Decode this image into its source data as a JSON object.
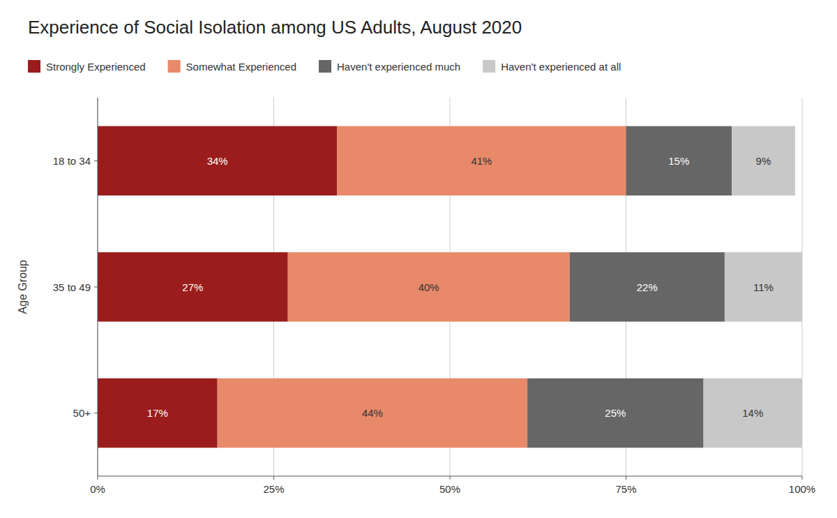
{
  "chart_data": {
    "type": "bar",
    "orientation": "horizontal",
    "stacked": true,
    "title": "Experience of Social Isolation among US Adults, August 2020",
    "ylabel": "Age Group",
    "categories": [
      "18 to 34",
      "35 to 49",
      "50+"
    ],
    "series": [
      {
        "name": "Strongly Experienced",
        "color": "#9B1C1C",
        "values": [
          34,
          27,
          17
        ],
        "value_labels": [
          "34%",
          "27%",
          "17%"
        ]
      },
      {
        "name": "Somewhat Experienced",
        "color": "#E8896A",
        "values": [
          41,
          40,
          44
        ],
        "value_labels": [
          "41%",
          "40%",
          "44%"
        ]
      },
      {
        "name": "Haven't experienced much",
        "color": "#666666",
        "values": [
          15,
          22,
          25
        ],
        "value_labels": [
          "15%",
          "22%",
          "25%"
        ]
      },
      {
        "name": "Haven't experienced at all",
        "color": "#C8C8C8",
        "values": [
          9,
          11,
          14
        ],
        "value_labels": [
          "9%",
          "11%",
          "14%"
        ]
      }
    ],
    "xlim": [
      0,
      100
    ],
    "xticks": [
      {
        "value": 0,
        "label": "0%"
      },
      {
        "value": 25,
        "label": "25%"
      },
      {
        "value": 50,
        "label": "50%"
      },
      {
        "value": 75,
        "label": "75%"
      },
      {
        "value": 100,
        "label": "100%"
      }
    ],
    "grid": true,
    "legend": "top",
    "data_labels": true
  }
}
